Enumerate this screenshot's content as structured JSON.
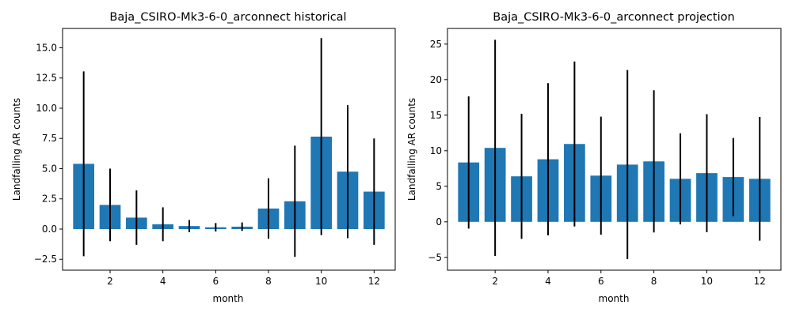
{
  "chart_data": [
    {
      "type": "bar",
      "title": "Baja_CSIRO-Mk3-6-0_arconnect historical",
      "xlabel": "month",
      "ylabel": "Landfalling AR counts",
      "x": [
        1,
        2,
        3,
        4,
        5,
        6,
        7,
        8,
        9,
        10,
        11,
        12
      ],
      "values": [
        5.4,
        2.0,
        0.95,
        0.4,
        0.25,
        0.15,
        0.2,
        1.7,
        2.3,
        7.65,
        4.75,
        3.1
      ],
      "error": [
        7.65,
        3.0,
        2.25,
        1.4,
        0.5,
        0.35,
        0.35,
        2.5,
        4.6,
        8.15,
        5.5,
        4.4
      ],
      "xlim": [
        0.2,
        12.8
      ],
      "ylim": [
        -3.4,
        16.6
      ],
      "xticks": [
        2,
        4,
        6,
        8,
        10,
        12
      ],
      "yticks": [
        -2.5,
        0.0,
        2.5,
        5.0,
        7.5,
        10.0,
        12.5,
        15.0
      ],
      "ytick_labels": [
        "−2.5",
        "0.0",
        "2.5",
        "5.0",
        "7.5",
        "10.0",
        "12.5",
        "15.0"
      ],
      "bar_color": "#1f77b4",
      "error_color": "#000000",
      "grid": false,
      "legend": false
    },
    {
      "type": "bar",
      "title": "Baja_CSIRO-Mk3-6-0_arconnect projection",
      "xlabel": "month",
      "ylabel": "Landfalling AR counts",
      "x": [
        1,
        2,
        3,
        4,
        5,
        6,
        7,
        8,
        9,
        10,
        11,
        12
      ],
      "values": [
        8.35,
        10.4,
        6.4,
        8.8,
        10.95,
        6.5,
        8.05,
        8.5,
        6.05,
        6.85,
        6.3,
        6.05
      ],
      "error": [
        9.3,
        15.2,
        8.8,
        10.7,
        11.6,
        8.3,
        13.3,
        10.0,
        6.4,
        8.3,
        5.5,
        8.7
      ],
      "xlim": [
        0.2,
        12.8
      ],
      "ylim": [
        -6.8,
        27.2
      ],
      "xticks": [
        2,
        4,
        6,
        8,
        10,
        12
      ],
      "yticks": [
        -5,
        0,
        5,
        10,
        15,
        20,
        25
      ],
      "ytick_labels": [
        "−5",
        "0",
        "5",
        "10",
        "15",
        "20",
        "25"
      ],
      "bar_color": "#1f77b4",
      "error_color": "#000000",
      "grid": false,
      "legend": false
    }
  ]
}
